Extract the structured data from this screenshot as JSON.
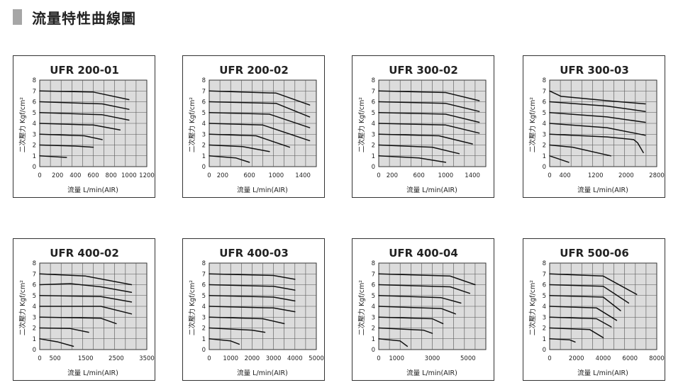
{
  "header": {
    "title": "流量特性曲線圖"
  },
  "chart_data": [
    {
      "type": "line",
      "title": "UFR 200-01",
      "xlabel": "流量 L/min(AIR)",
      "ylabel": "二次壓力 Kgf/cm²",
      "xlim": [
        0,
        1200
      ],
      "ylim": [
        0,
        8
      ],
      "xticks": [
        0,
        200,
        400,
        600,
        800,
        1000,
        1200
      ],
      "yticks": [
        0,
        1,
        2,
        3,
        4,
        5,
        6,
        7,
        8
      ],
      "grid": true,
      "series": [
        {
          "x": [
            0,
            300
          ],
          "y": [
            1.0,
            0.85
          ]
        },
        {
          "x": [
            0,
            400,
            600
          ],
          "y": [
            2.0,
            1.9,
            1.8
          ]
        },
        {
          "x": [
            0,
            500,
            700
          ],
          "y": [
            3.0,
            2.85,
            2.5
          ]
        },
        {
          "x": [
            0,
            600,
            900
          ],
          "y": [
            4.0,
            3.85,
            3.4
          ]
        },
        {
          "x": [
            0,
            700,
            1000
          ],
          "y": [
            5.0,
            4.8,
            4.3
          ]
        },
        {
          "x": [
            0,
            700,
            1000
          ],
          "y": [
            6.0,
            5.8,
            5.3
          ]
        },
        {
          "x": [
            0,
            600,
            1000
          ],
          "y": [
            7.0,
            6.9,
            6.2
          ]
        }
      ]
    },
    {
      "type": "line",
      "title": "UFR 200-02",
      "xlabel": "流量 L/min(AIR)",
      "ylabel": "二次壓力 Kgf/cm²",
      "xlim": [
        0,
        1600
      ],
      "ylim": [
        0,
        8
      ],
      "xticks": [
        0,
        200,
        600,
        1000,
        1400
      ],
      "yticks": [
        0,
        1,
        2,
        3,
        4,
        5,
        6,
        7,
        8
      ],
      "grid": true,
      "series": [
        {
          "x": [
            0,
            400,
            600
          ],
          "y": [
            1.0,
            0.8,
            0.4
          ]
        },
        {
          "x": [
            0,
            500,
            900
          ],
          "y": [
            2.0,
            1.85,
            1.4
          ]
        },
        {
          "x": [
            0,
            700,
            1200
          ],
          "y": [
            3.0,
            2.85,
            1.8
          ]
        },
        {
          "x": [
            0,
            800,
            1500
          ],
          "y": [
            4.0,
            3.85,
            2.4
          ]
        },
        {
          "x": [
            0,
            900,
            1500
          ],
          "y": [
            5.0,
            4.85,
            3.6
          ]
        },
        {
          "x": [
            0,
            1000,
            1500
          ],
          "y": [
            6.0,
            5.85,
            4.6
          ]
        },
        {
          "x": [
            0,
            1000,
            1500
          ],
          "y": [
            7.0,
            6.8,
            5.7
          ]
        }
      ]
    },
    {
      "type": "line",
      "title": "UFR 300-02",
      "xlabel": "流量 L/min(AIR)",
      "ylabel": "二次壓力 Kgf/cm²",
      "xlim": [
        0,
        1600
      ],
      "ylim": [
        0,
        8
      ],
      "xticks": [
        0,
        200,
        600,
        1000,
        1400
      ],
      "yticks": [
        0,
        1,
        2,
        3,
        4,
        5,
        6,
        7,
        8
      ],
      "grid": true,
      "series": [
        {
          "x": [
            0,
            600,
            1000
          ],
          "y": [
            1.0,
            0.8,
            0.4
          ]
        },
        {
          "x": [
            0,
            800,
            1200
          ],
          "y": [
            2.0,
            1.8,
            1.2
          ]
        },
        {
          "x": [
            0,
            900,
            1400
          ],
          "y": [
            3.0,
            2.85,
            2.1
          ]
        },
        {
          "x": [
            0,
            1000,
            1500
          ],
          "y": [
            4.0,
            3.85,
            3.1
          ]
        },
        {
          "x": [
            0,
            1000,
            1500
          ],
          "y": [
            5.0,
            4.85,
            4.1
          ]
        },
        {
          "x": [
            0,
            1000,
            1500
          ],
          "y": [
            6.0,
            5.85,
            5.1
          ]
        },
        {
          "x": [
            0,
            1000,
            1500
          ],
          "y": [
            7.0,
            6.85,
            6.1
          ]
        }
      ]
    },
    {
      "type": "line",
      "title": "UFR 300-03",
      "xlabel": "流量 L/min(AIR)",
      "ylabel": "二次壓力 Kgf/cm²",
      "xlim": [
        0,
        2800
      ],
      "ylim": [
        0,
        8
      ],
      "xticks": [
        0,
        400,
        1200,
        2000,
        2800
      ],
      "yticks": [
        0,
        1,
        2,
        3,
        4,
        5,
        6,
        7,
        8
      ],
      "grid": true,
      "series": [
        {
          "x": [
            0,
            500
          ],
          "y": [
            1.0,
            0.4
          ]
        },
        {
          "x": [
            0,
            600,
            1600
          ],
          "y": [
            2.0,
            1.8,
            1.0
          ]
        },
        {
          "x": [
            0,
            1500,
            2200,
            2300,
            2450
          ],
          "y": [
            3.0,
            2.75,
            2.5,
            2.2,
            1.3
          ]
        },
        {
          "x": [
            0,
            1500,
            2500
          ],
          "y": [
            4.0,
            3.6,
            2.9
          ]
        },
        {
          "x": [
            0,
            1500,
            2500
          ],
          "y": [
            5.0,
            4.6,
            4.1
          ]
        },
        {
          "x": [
            0,
            1500,
            2500
          ],
          "y": [
            6.0,
            5.6,
            5.1
          ]
        },
        {
          "x": [
            0,
            300,
            1500,
            2500
          ],
          "y": [
            7.0,
            6.5,
            6.1,
            5.8
          ]
        }
      ]
    },
    {
      "type": "line",
      "title": "UFR 400-02",
      "xlabel": "流量 L/min(AIR)",
      "ylabel": "二次壓力 Kgf/cm²",
      "xlim": [
        0,
        3500
      ],
      "ylim": [
        0,
        8
      ],
      "xticks": [
        0,
        500,
        1500,
        2500,
        3500
      ],
      "yticks": [
        0,
        1,
        2,
        3,
        4,
        5,
        6,
        7,
        8
      ],
      "grid": true,
      "series": [
        {
          "x": [
            0,
            600,
            1100
          ],
          "y": [
            1.0,
            0.7,
            0.3
          ]
        },
        {
          "x": [
            0,
            1000,
            1600
          ],
          "y": [
            2.0,
            1.95,
            1.6
          ]
        },
        {
          "x": [
            0,
            2000,
            2500
          ],
          "y": [
            3.0,
            2.9,
            2.4
          ]
        },
        {
          "x": [
            0,
            2000,
            3000
          ],
          "y": [
            4.0,
            4.0,
            3.3
          ]
        },
        {
          "x": [
            0,
            2000,
            3000
          ],
          "y": [
            5.0,
            4.9,
            4.4
          ]
        },
        {
          "x": [
            0,
            1000,
            2000,
            3000
          ],
          "y": [
            6.0,
            6.1,
            5.8,
            5.3
          ]
        },
        {
          "x": [
            0,
            1500,
            3000
          ],
          "y": [
            7.0,
            6.8,
            6.0
          ]
        }
      ]
    },
    {
      "type": "line",
      "title": "UFR 400-03",
      "xlabel": "流量 L/min(AIR)",
      "ylabel": "二次壓力 Kgf/cm²",
      "xlim": [
        0,
        5000
      ],
      "ylim": [
        0,
        8
      ],
      "xticks": [
        0,
        1000,
        2000,
        3000,
        4000,
        5000
      ],
      "yticks": [
        0,
        1,
        2,
        3,
        4,
        5,
        6,
        7,
        8
      ],
      "grid": true,
      "series": [
        {
          "x": [
            0,
            1000,
            1400
          ],
          "y": [
            1.0,
            0.8,
            0.5
          ]
        },
        {
          "x": [
            0,
            2000,
            2600
          ],
          "y": [
            2.0,
            1.8,
            1.6
          ]
        },
        {
          "x": [
            0,
            2500,
            3500
          ],
          "y": [
            3.0,
            2.85,
            2.4
          ]
        },
        {
          "x": [
            0,
            3000,
            4000
          ],
          "y": [
            4.0,
            3.85,
            3.5
          ]
        },
        {
          "x": [
            0,
            3000,
            4000
          ],
          "y": [
            5.0,
            4.85,
            4.5
          ]
        },
        {
          "x": [
            0,
            3000,
            4000
          ],
          "y": [
            6.0,
            5.85,
            5.5
          ]
        },
        {
          "x": [
            0,
            3000,
            4000
          ],
          "y": [
            7.0,
            6.85,
            6.5
          ]
        }
      ]
    },
    {
      "type": "line",
      "title": "UFR 400-04",
      "xlabel": "流量 L/min(AIR)",
      "ylabel": "二次壓力 Kgf/cm²",
      "xlim": [
        0,
        6000
      ],
      "ylim": [
        0,
        8
      ],
      "xticks": [
        0,
        1000,
        3000,
        5000
      ],
      "yticks": [
        0,
        1,
        2,
        3,
        4,
        5,
        6,
        7,
        8
      ],
      "grid": true,
      "series": [
        {
          "x": [
            0,
            1200,
            1600
          ],
          "y": [
            1.0,
            0.8,
            0.3
          ]
        },
        {
          "x": [
            0,
            2500,
            3000
          ],
          "y": [
            2.0,
            1.8,
            1.5
          ]
        },
        {
          "x": [
            0,
            3000,
            3600
          ],
          "y": [
            3.0,
            2.85,
            2.4
          ]
        },
        {
          "x": [
            0,
            3500,
            4300
          ],
          "y": [
            4.0,
            3.8,
            3.3
          ]
        },
        {
          "x": [
            0,
            3500,
            4600
          ],
          "y": [
            5.0,
            4.8,
            4.3
          ]
        },
        {
          "x": [
            0,
            4000,
            5100
          ],
          "y": [
            6.0,
            5.8,
            5.2
          ]
        },
        {
          "x": [
            0,
            4000,
            5400
          ],
          "y": [
            7.0,
            6.8,
            6.0
          ]
        }
      ]
    },
    {
      "type": "line",
      "title": "UFR 500-06",
      "xlabel": "流量 L/min(AIR)",
      "ylabel": "二次壓力 Kgf/cm²",
      "xlim": [
        0,
        8000
      ],
      "ylim": [
        0,
        8
      ],
      "xticks": [
        0,
        2000,
        4000,
        6000,
        8000
      ],
      "yticks": [
        0,
        1,
        2,
        3,
        4,
        5,
        6,
        7,
        8
      ],
      "grid": true,
      "series": [
        {
          "x": [
            0,
            1500,
            1900
          ],
          "y": [
            1.0,
            0.9,
            0.7
          ]
        },
        {
          "x": [
            0,
            3000,
            4000
          ],
          "y": [
            2.0,
            1.85,
            1.1
          ]
        },
        {
          "x": [
            0,
            3500,
            4600
          ],
          "y": [
            3.0,
            2.85,
            2.1
          ]
        },
        {
          "x": [
            0,
            3500,
            5000
          ],
          "y": [
            4.0,
            3.85,
            2.7
          ]
        },
        {
          "x": [
            0,
            4000,
            5300
          ],
          "y": [
            5.0,
            4.85,
            3.6
          ]
        },
        {
          "x": [
            0,
            4000,
            5900
          ],
          "y": [
            6.0,
            5.85,
            4.3
          ]
        },
        {
          "x": [
            0,
            4000,
            6500
          ],
          "y": [
            7.0,
            6.8,
            5.1
          ]
        }
      ]
    }
  ]
}
